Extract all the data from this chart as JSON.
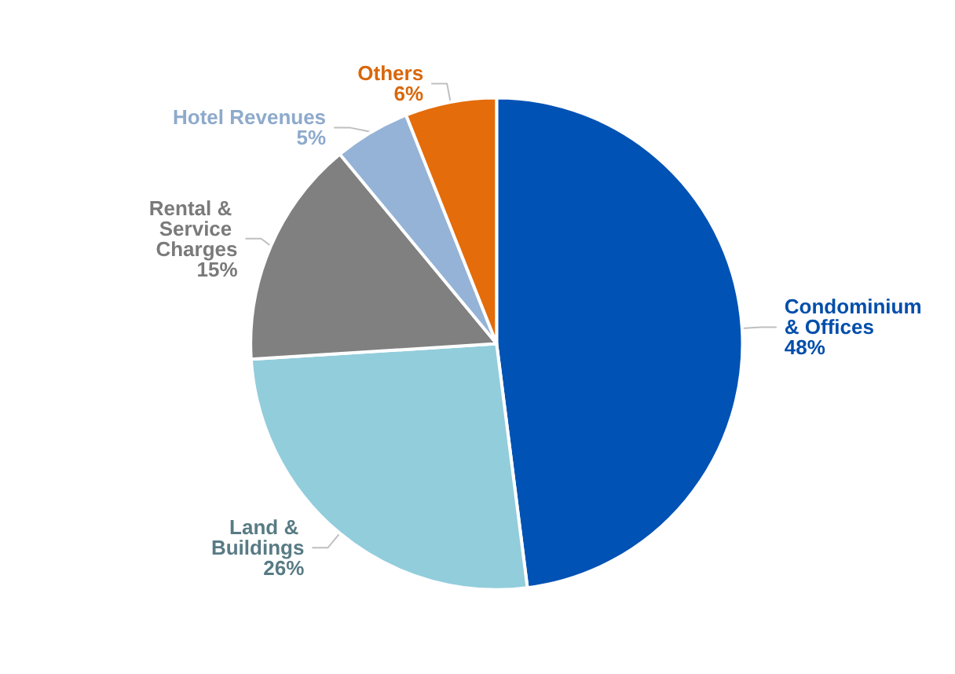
{
  "chart_data": {
    "type": "pie",
    "categories": [
      "Condominium & Offices",
      "Land & Buildings",
      "Rental & Service Charges",
      "Hotel Revenues",
      "Others"
    ],
    "values": [
      48,
      26,
      15,
      5,
      6
    ],
    "colors": [
      "#0052b4",
      "#92cddc",
      "#808080",
      "#95b3d7",
      "#e46c0a"
    ],
    "value_labels": [
      "48%",
      "26%",
      "15%",
      "5%",
      "6%"
    ],
    "legend": false
  }
}
